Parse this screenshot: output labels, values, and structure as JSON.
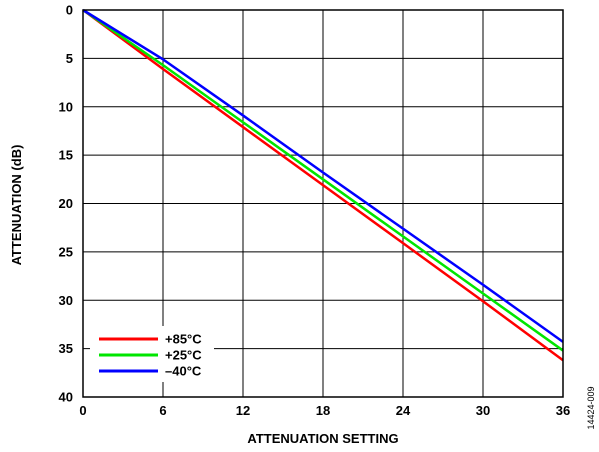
{
  "chart_data": {
    "type": "line",
    "xlabel": "ATTENUATION SETTING",
    "ylabel": "ATTENUATION (dB)",
    "xlim": [
      0,
      36
    ],
    "ylim": [
      0,
      40
    ],
    "y_inverted": true,
    "grid": true,
    "x_ticks": [
      "0",
      "6",
      "12",
      "18",
      "24",
      "30",
      "36"
    ],
    "y_ticks": [
      "0",
      "5",
      "10",
      "15",
      "20",
      "25",
      "30",
      "35",
      "40"
    ],
    "legend_position": "bottom-left",
    "series": [
      {
        "name": "+85°C",
        "color": "#ff0000",
        "x": [
          0,
          6,
          12,
          18,
          24,
          30,
          36
        ],
        "y": [
          0,
          6.1,
          12.1,
          18.1,
          24.1,
          30.1,
          36.2
        ]
      },
      {
        "name": "+25°C",
        "color": "#00e600",
        "x": [
          0,
          6,
          12,
          18,
          24,
          30,
          36
        ],
        "y": [
          0,
          5.7,
          11.6,
          17.5,
          23.4,
          29.3,
          35.2
        ]
      },
      {
        "name": "–40°C",
        "color": "#0000ff",
        "x": [
          0,
          6,
          12,
          18,
          24,
          30,
          36
        ],
        "y": [
          0,
          5.1,
          10.9,
          16.8,
          22.6,
          28.4,
          34.3
        ]
      }
    ],
    "figure_id": "14424-009"
  }
}
